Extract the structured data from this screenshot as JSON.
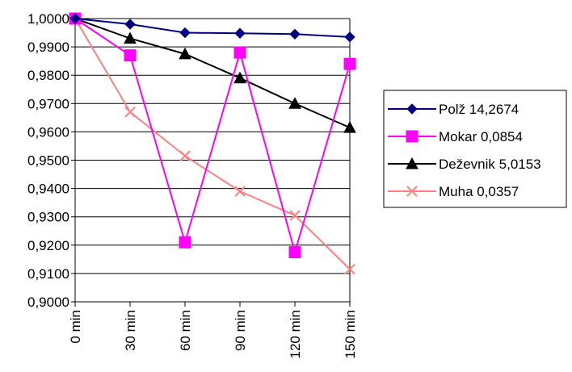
{
  "chart_data": {
    "type": "line",
    "categories": [
      "0 min",
      "30 min",
      "60 min",
      "90 min",
      "120 min",
      "150 min"
    ],
    "ylim": [
      0.9,
      1.0
    ],
    "yticks": [
      "1,0000",
      "0,9900",
      "0,9800",
      "0,9700",
      "0,9600",
      "0,9500",
      "0,9400",
      "0,9300",
      "0,9200",
      "0,9100",
      "0,9000"
    ],
    "grid": true,
    "legend_position": "right",
    "series": [
      {
        "name": "Polž 14,2674",
        "color": "#000080",
        "marker": "diamond",
        "values": [
          1.0,
          0.998,
          0.995,
          0.9948,
          0.9945,
          0.9935
        ]
      },
      {
        "name": "Mokar 0,0854",
        "color": "#ff00ff",
        "marker": "square",
        "values": [
          1.0,
          0.987,
          0.921,
          0.988,
          0.9175,
          0.984
        ]
      },
      {
        "name": "Deževnik 5,0153",
        "color": "#000000",
        "marker": "triangle",
        "values": [
          1.0,
          0.993,
          0.9875,
          0.979,
          0.97,
          0.9615
        ]
      },
      {
        "name": "Muha 0,0357",
        "color": "#ff8080",
        "marker": "x",
        "values": [
          1.0,
          0.967,
          0.9515,
          0.939,
          0.9305,
          0.9115
        ]
      }
    ]
  }
}
